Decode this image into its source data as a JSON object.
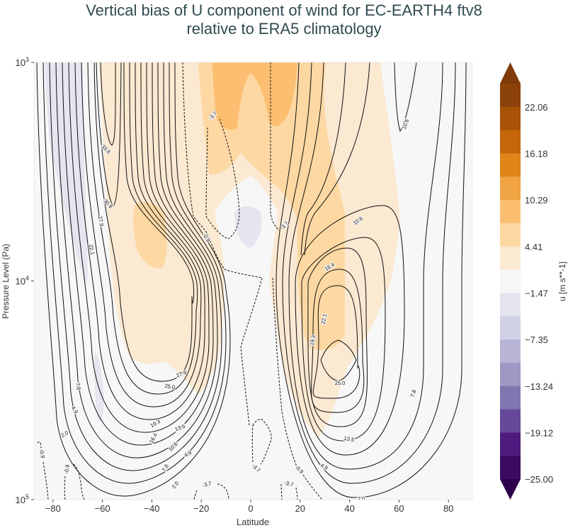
{
  "title": {
    "line1": "Vertical bias of U component of wind for EC-EARTH4 ftv8",
    "line2": "relative to ERA5 climatology"
  },
  "chart_data": {
    "type": "contour",
    "xlabel": "Latitude",
    "ylabel": "Pressure Level (Pa)",
    "xlim": [
      -88,
      88
    ],
    "ylim": [
      100000,
      1000
    ],
    "yscale": "log",
    "x_ticks": [
      "−80",
      "−60",
      "−40",
      "−20",
      "0",
      "20",
      "40",
      "60",
      "80"
    ],
    "y_ticks": [
      {
        "base": "10",
        "exp": "3"
      },
      {
        "base": "10",
        "exp": "4"
      },
      {
        "base": "10",
        "exp": "5"
      }
    ],
    "grid": false,
    "colorbar": {
      "label": "u [m s**-1]",
      "range": [
        -25,
        25
      ],
      "extend": "both",
      "tick_labels": [
        "22.06",
        "16.18",
        "10.29",
        "4.41",
        "−1.47",
        "−7.35",
        "−13.24",
        "−19.12",
        "−25.00"
      ],
      "colors": [
        "#8a4208",
        "#a85307",
        "#c5660b",
        "#df8419",
        "#f0a443",
        "#fcbf72",
        "#fdd8a3",
        "#fbe9d1",
        "#f6f6f5",
        "#e5e5f0",
        "#d0d1e6",
        "#b8b4d6",
        "#9f98c4",
        "#8076b0",
        "#66499a",
        "#4e1c7e",
        "#3a0b60"
      ],
      "over_color": "#7f3b08",
      "under_color": "#2d004b"
    },
    "contour_levels": [
      -3.7,
      -0.9,
      2.0,
      4.9,
      7.8,
      10.6,
      13.5,
      16.4,
      19.3,
      22.1,
      25.0,
      27.9,
      30.8,
      33.6
    ],
    "contour_labels": [
      "33.6",
      "30.8",
      "27.9",
      "22.1",
      "-3.7",
      "-0.9",
      "-3.7",
      "10.6",
      "10.6",
      "16.4",
      "19.3",
      "22.1",
      "25.0",
      "27.9",
      "25.0",
      "7.8",
      "4.9",
      "2.0",
      "19.3",
      "16.4",
      "13.5",
      "10.6",
      "7.8",
      "4.9",
      "2.0",
      "-0.9",
      "-0.9",
      "-3.7",
      "-3.7",
      "-0.9",
      "-3.7",
      "13.5",
      "4.9",
      "7.8",
      "2.0"
    ]
  }
}
